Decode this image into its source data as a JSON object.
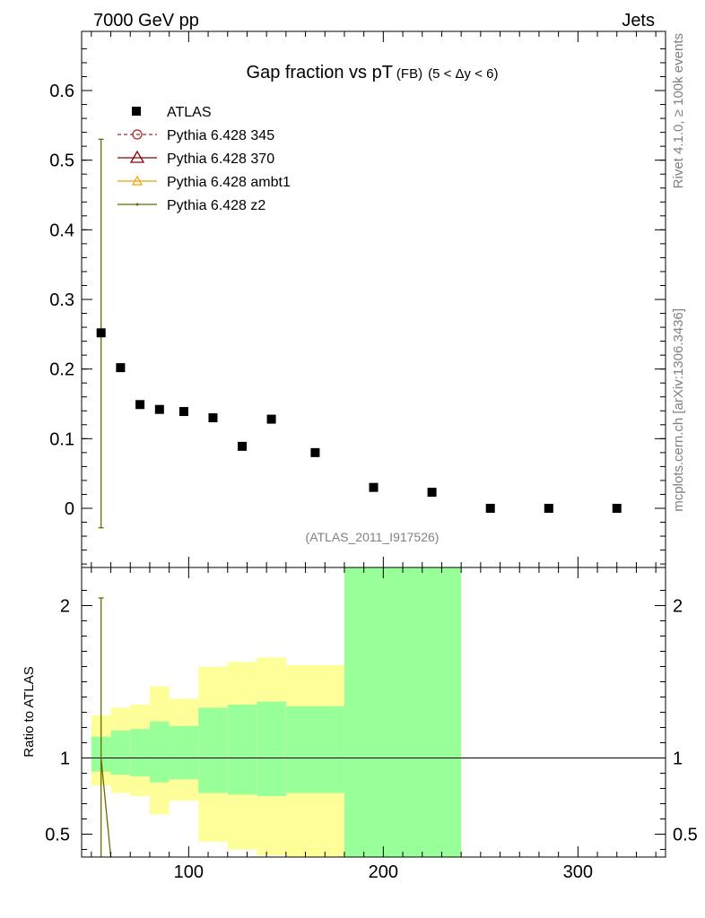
{
  "header": {
    "energy": "7000 GeV pp",
    "category": "Jets"
  },
  "side_labels": {
    "rivet": "Rivet 4.1.0, ≥ 100k events",
    "source": "mcplots.cern.ch [arXiv:1306.3436]"
  },
  "colors": {
    "data": "#000000",
    "p345": "#b22222",
    "p370": "#8b0000",
    "ambt1": "#f0a000",
    "z2": "#6b6b00",
    "band_outer": "#ffff99",
    "band_inner": "#99ff99"
  },
  "chart_data": [
    {
      "type": "scatter",
      "title_main": "Gap fraction vs pT",
      "title_sub": "(FB)",
      "title_range": "(5 < Δy < 6)",
      "analysis_label": "(ATLAS_2011_I917526)",
      "xlim": [
        45,
        345
      ],
      "ylim": [
        -0.085,
        0.685
      ],
      "yticks": [
        0,
        0.1,
        0.2,
        0.3,
        0.4,
        0.5,
        0.6
      ],
      "ytick_labels": [
        "0",
        "0.1",
        "0.2",
        "0.3",
        "0.4",
        "0.5",
        "0.6"
      ],
      "legend": [
        {
          "key": "data",
          "label": "ATLAS"
        },
        {
          "key": "p345",
          "label": "Pythia 6.428 345"
        },
        {
          "key": "p370",
          "label": "Pythia 6.428 370"
        },
        {
          "key": "ambt1",
          "label": "Pythia 6.428 ambt1"
        },
        {
          "key": "z2",
          "label": "Pythia 6.428 z2"
        }
      ],
      "series": [
        {
          "name": "ATLAS",
          "x": [
            55,
            65,
            75,
            85,
            97.5,
            112.5,
            127.5,
            142.5,
            165,
            195,
            225,
            255,
            285,
            320
          ],
          "y": [
            0.252,
            0.202,
            0.149,
            0.142,
            0.139,
            0.13,
            0.089,
            0.128,
            0.08,
            0.03,
            0.023,
            0.0,
            0.0,
            0.0
          ]
        },
        {
          "name": "Pythia 6.428 z2",
          "x": [
            55
          ],
          "y": [
            0.252
          ],
          "yerr_low": [
            0.28
          ],
          "yerr_high": [
            0.278
          ]
        }
      ]
    },
    {
      "type": "area",
      "ylabel": "Ratio to ATLAS",
      "xlim": [
        45,
        345
      ],
      "ylim": [
        0.35,
        2.25
      ],
      "xticks": [
        100,
        200,
        300
      ],
      "xtick_labels": [
        "100",
        "200",
        "300"
      ],
      "yticks": [
        0.5,
        1,
        2
      ],
      "ytick_labels": [
        "0.5",
        "1",
        "2"
      ],
      "reference_line": 1,
      "bins": [
        {
          "lo": 50,
          "hi": 60,
          "in_lo": 0.91,
          "in_hi": 1.14,
          "out_lo": 0.82,
          "out_hi": 1.28
        },
        {
          "lo": 60,
          "hi": 70,
          "in_lo": 0.89,
          "in_hi": 1.18,
          "out_lo": 0.77,
          "out_hi": 1.33
        },
        {
          "lo": 70,
          "hi": 80,
          "in_lo": 0.88,
          "in_hi": 1.19,
          "out_lo": 0.75,
          "out_hi": 1.35
        },
        {
          "lo": 80,
          "hi": 90,
          "in_lo": 0.84,
          "in_hi": 1.24,
          "out_lo": 0.63,
          "out_hi": 1.47
        },
        {
          "lo": 90,
          "hi": 105,
          "in_lo": 0.86,
          "in_hi": 1.21,
          "out_lo": 0.72,
          "out_hi": 1.39
        },
        {
          "lo": 105,
          "hi": 120,
          "in_lo": 0.77,
          "in_hi": 1.33,
          "out_lo": 0.45,
          "out_hi": 1.6
        },
        {
          "lo": 120,
          "hi": 135,
          "in_lo": 0.76,
          "in_hi": 1.35,
          "out_lo": 0.4,
          "out_hi": 1.63
        },
        {
          "lo": 135,
          "hi": 150,
          "in_lo": 0.75,
          "in_hi": 1.37,
          "out_lo": 0.36,
          "out_hi": 1.66
        },
        {
          "lo": 150,
          "hi": 180,
          "in_lo": 0.77,
          "in_hi": 1.34,
          "out_lo": 0.35,
          "out_hi": 1.61
        },
        {
          "lo": 180,
          "hi": 240,
          "in_lo": 0.35,
          "in_hi": 2.25,
          "out_lo": 0.35,
          "out_hi": 2.25
        }
      ],
      "series": [
        {
          "name": "Pythia 6.428 z2 ratio",
          "x": [
            55,
            60
          ],
          "y": [
            1.0,
            0.35
          ],
          "yerr_low": [
            0.65
          ],
          "yerr_high": [
            1.05
          ]
        }
      ]
    }
  ]
}
